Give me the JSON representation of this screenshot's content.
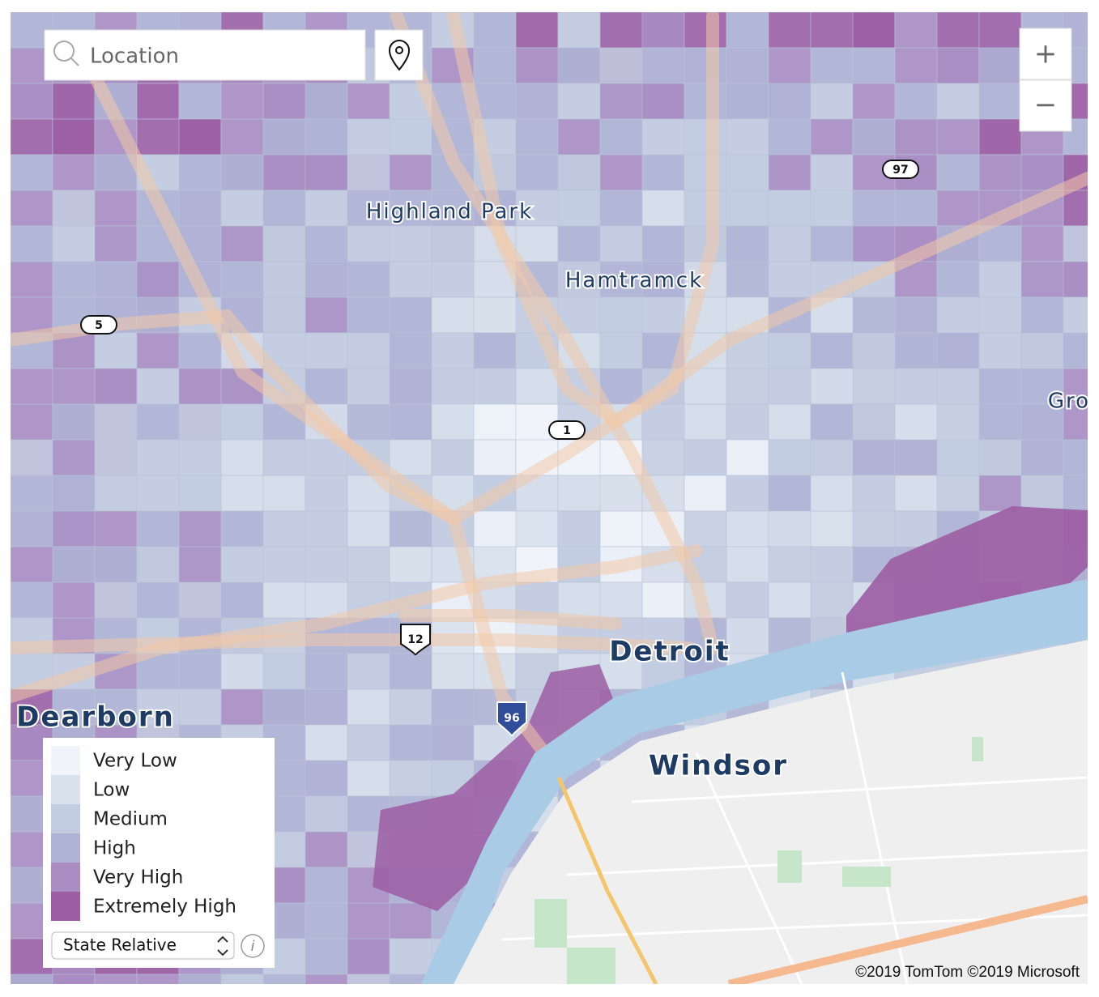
{
  "search": {
    "placeholder": "Location"
  },
  "zoom": {
    "in": "+",
    "out": "−"
  },
  "places": [
    {
      "label": "Highland Park"
    },
    {
      "label": "Hamtramck"
    },
    {
      "label": "Gro"
    },
    {
      "label": "Detroit"
    },
    {
      "label": "Dearborn"
    },
    {
      "label": "Windsor"
    }
  ],
  "shields": [
    {
      "label": "5"
    },
    {
      "label": "1"
    },
    {
      "label": "97"
    },
    {
      "label": "12"
    },
    {
      "label": "96"
    }
  ],
  "legend": {
    "items": [
      {
        "label": "Very Low",
        "color": "#f1f5fa"
      },
      {
        "label": "Low",
        "color": "#d8e1ec"
      },
      {
        "label": "Medium",
        "color": "#c3cde1"
      },
      {
        "label": "High",
        "color": "#afb3d5"
      },
      {
        "label": "Very High",
        "color": "#a98dc3"
      },
      {
        "label": "Extremely High",
        "color": "#9c5da3"
      }
    ],
    "selector": "State Relative",
    "info": "i"
  },
  "attribution": "©2019 TomTom ©2019 Microsoft"
}
